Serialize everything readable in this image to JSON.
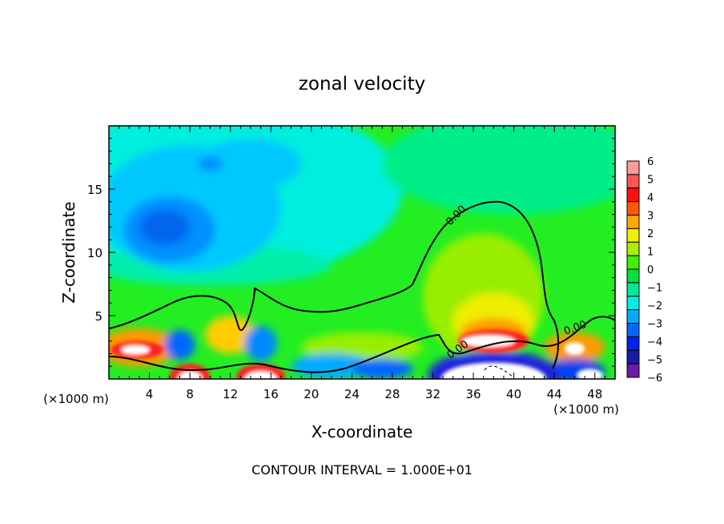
{
  "chart_data": {
    "type": "heatmap",
    "title": "zonal velocity",
    "xlabel": "X-coordinate",
    "ylabel": "Z-coordinate",
    "x_unit_label": "(×1000 m)",
    "x_unit_label_right": "(×1000 m)",
    "xlim": [
      0,
      50
    ],
    "ylim": [
      0,
      20
    ],
    "xticks": [
      "4",
      "8",
      "12",
      "16",
      "20",
      "24",
      "28",
      "32",
      "36",
      "40",
      "44",
      "48"
    ],
    "yticks": [
      "5",
      "10",
      "15"
    ],
    "colorbar": {
      "ticks": [
        "6",
        "5",
        "4",
        "3",
        "2",
        "1",
        "0",
        "−1",
        "−2",
        "−3",
        "−4",
        "−5",
        "−6"
      ],
      "range": [
        -6,
        6
      ],
      "colors": [
        "#ff9a9a",
        "#ff5555",
        "#ff1010",
        "#ff5a00",
        "#ffaa00",
        "#f0f000",
        "#aaee00",
        "#44ee00",
        "#00e040",
        "#00e899",
        "#00f0e0",
        "#00aaff",
        "#0066ff",
        "#0022ee",
        "#1a1aa0",
        "#6a1aa8"
      ]
    },
    "contour_labels": [
      "0.00",
      "0.00",
      "0.00"
    ],
    "annotation": "CONTOUR INTERVAL = 1.000E+01"
  }
}
